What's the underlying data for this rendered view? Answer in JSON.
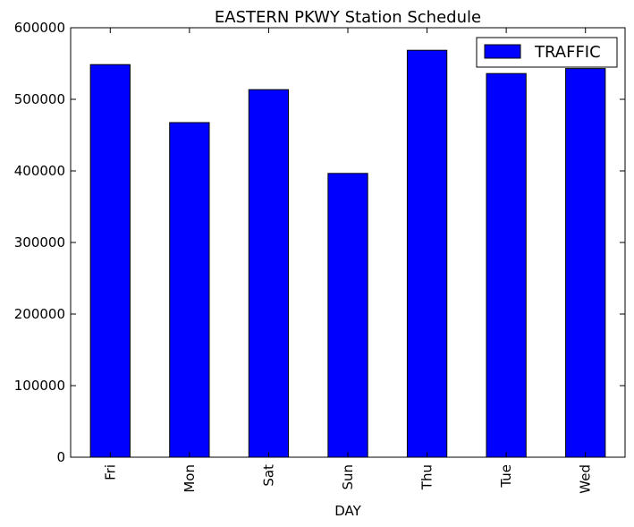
{
  "chart_data": {
    "type": "bar",
    "title": "EASTERN PKWY Station Schedule",
    "xlabel": "DAY",
    "ylabel": "",
    "categories": [
      "Fri",
      "Mon",
      "Sat",
      "Sun",
      "Thu",
      "Tue",
      "Wed"
    ],
    "series": [
      {
        "name": "TRAFFIC",
        "values": [
          548500,
          467500,
          513500,
          396500,
          568500,
          536000,
          543000
        ],
        "color": "#0000ff"
      }
    ],
    "ylim": [
      0,
      600000
    ],
    "yticks": [
      0,
      100000,
      200000,
      300000,
      400000,
      500000,
      600000
    ],
    "ytick_labels": [
      "0",
      "100000",
      "200000",
      "300000",
      "400000",
      "500000",
      "600000"
    ],
    "grid": false,
    "legend_position": "top-right"
  }
}
